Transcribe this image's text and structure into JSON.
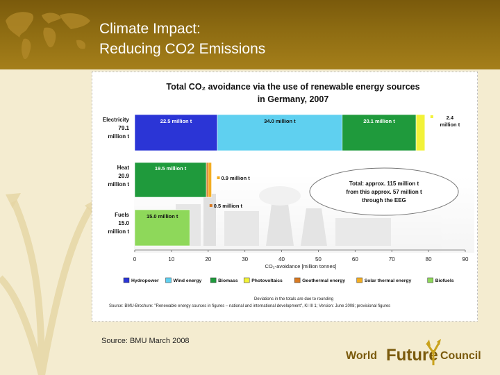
{
  "slide": {
    "title_line1": "Climate Impact:",
    "title_line2": "Reducing CO2 Emissions",
    "source": "Source: BMU March 2008"
  },
  "logo": {
    "word1": "World",
    "word2": "Future",
    "word3": "Council"
  },
  "colors": {
    "header": "#8e6c12",
    "hydropower": "#2b35d6",
    "wind": "#5fd0f0",
    "biomass": "#1f9a3c",
    "photovoltaics": "#f2f238",
    "geothermal": "#d87a22",
    "solar_thermal": "#f3ad22",
    "biofuels": "#8ed85a"
  },
  "chart_data": {
    "type": "bar",
    "orientation": "horizontal",
    "stacked": true,
    "title": "Total CO₂ avoidance via the use of renewable energy sources in Germany, 2007",
    "title_line1": "Total CO₂ avoidance via the use of renewable energy sources",
    "title_line2": "in Germany, 2007",
    "xlabel": "CO₂-avoidance  [million tonnes]",
    "xlim": [
      0,
      90
    ],
    "xticks": [
      "0",
      "10",
      "20",
      "30",
      "40",
      "50",
      "60",
      "70",
      "80",
      "90"
    ],
    "grid": false,
    "legend_position": "bottom",
    "categories": [
      {
        "label": "Electricity",
        "total": "79.1",
        "unit": "million t"
      },
      {
        "label": "Heat",
        "total": "20.9",
        "unit": "million t"
      },
      {
        "label": "Fuels",
        "total": "15.0",
        "unit": "million t"
      }
    ],
    "series": [
      {
        "name": "Hydropower",
        "color": "#2b35d6",
        "values": [
          22.5,
          0,
          0
        ]
      },
      {
        "name": "Wind energy",
        "color": "#5fd0f0",
        "values": [
          34.0,
          0,
          0
        ]
      },
      {
        "name": "Biomass",
        "color": "#1f9a3c",
        "values": [
          20.1,
          19.5,
          0
        ]
      },
      {
        "name": "Photovoltaics",
        "color": "#f2f238",
        "values": [
          2.4,
          0,
          0
        ]
      },
      {
        "name": "Geothermal energy",
        "color": "#d87a22",
        "values": [
          0,
          0.5,
          0
        ]
      },
      {
        "name": "Solar thermal energy",
        "color": "#f3ad22",
        "values": [
          0,
          0.9,
          0
        ]
      },
      {
        "name": "Biofuels",
        "color": "#8ed85a",
        "values": [
          0,
          0,
          15.0
        ]
      }
    ],
    "segment_labels": [
      {
        "text": "22.5 million t",
        "row": 0,
        "series": 0,
        "place": "inside"
      },
      {
        "text": "34.0 million t",
        "row": 0,
        "series": 1,
        "place": "inside"
      },
      {
        "text": "20.1 million t",
        "row": 0,
        "series": 2,
        "place": "inside"
      },
      {
        "text": "2.4",
        "text2": "million t",
        "row": 0,
        "series": 3,
        "place": "right"
      },
      {
        "text": "19.5 million t",
        "row": 1,
        "series": 2,
        "place": "inside"
      },
      {
        "text": "0.9 million t",
        "row": 1,
        "series": 5,
        "place": "right-upper"
      },
      {
        "text": "0.5 million t",
        "row": 1,
        "series": 4,
        "place": "right-lower"
      },
      {
        "text": "15.0 million t",
        "row": 2,
        "series": 6,
        "place": "inside"
      }
    ],
    "annotation": {
      "line1": "Total: approx. 115 million t",
      "line2": "from this approx. 57 million t",
      "line3": "through the EEG"
    },
    "footnote": "Deviations in the totals are due to rounding",
    "source_line": "Source: BMU-Brochure: \"Renewable energy sources in figures – national and international development\", KI III 1; Version: June 2008; provisional figures"
  }
}
